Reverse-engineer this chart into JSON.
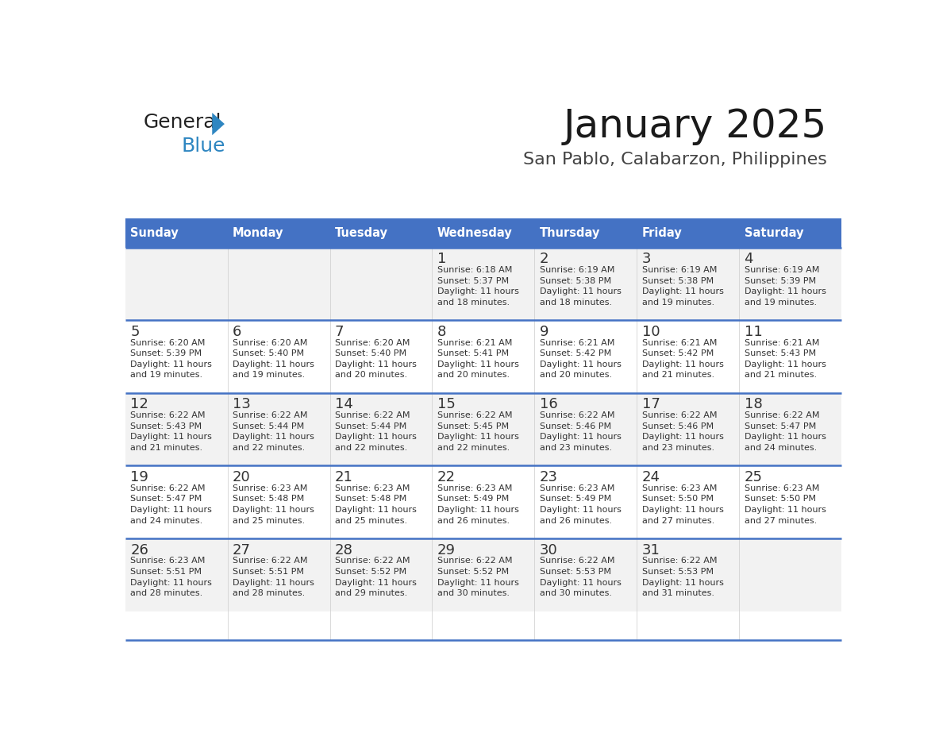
{
  "title": "January 2025",
  "subtitle": "San Pablo, Calabarzon, Philippines",
  "days_of_week": [
    "Sunday",
    "Monday",
    "Tuesday",
    "Wednesday",
    "Thursday",
    "Friday",
    "Saturday"
  ],
  "header_bg": "#4472C4",
  "header_text": "#FFFFFF",
  "row_bg_odd": "#F2F2F2",
  "row_bg_even": "#FFFFFF",
  "cell_text_color": "#333333",
  "day_num_color": "#333333",
  "separator_color": "#4472C4",
  "calendar_data": [
    [
      null,
      null,
      null,
      {
        "day": 1,
        "sunrise": "6:18 AM",
        "sunset": "5:37 PM",
        "daylight_mins": 18
      },
      {
        "day": 2,
        "sunrise": "6:19 AM",
        "sunset": "5:38 PM",
        "daylight_mins": 18
      },
      {
        "day": 3,
        "sunrise": "6:19 AM",
        "sunset": "5:38 PM",
        "daylight_mins": 19
      },
      {
        "day": 4,
        "sunrise": "6:19 AM",
        "sunset": "5:39 PM",
        "daylight_mins": 19
      }
    ],
    [
      {
        "day": 5,
        "sunrise": "6:20 AM",
        "sunset": "5:39 PM",
        "daylight_mins": 19
      },
      {
        "day": 6,
        "sunrise": "6:20 AM",
        "sunset": "5:40 PM",
        "daylight_mins": 19
      },
      {
        "day": 7,
        "sunrise": "6:20 AM",
        "sunset": "5:40 PM",
        "daylight_mins": 20
      },
      {
        "day": 8,
        "sunrise": "6:21 AM",
        "sunset": "5:41 PM",
        "daylight_mins": 20
      },
      {
        "day": 9,
        "sunrise": "6:21 AM",
        "sunset": "5:42 PM",
        "daylight_mins": 20
      },
      {
        "day": 10,
        "sunrise": "6:21 AM",
        "sunset": "5:42 PM",
        "daylight_mins": 21
      },
      {
        "day": 11,
        "sunrise": "6:21 AM",
        "sunset": "5:43 PM",
        "daylight_mins": 21
      }
    ],
    [
      {
        "day": 12,
        "sunrise": "6:22 AM",
        "sunset": "5:43 PM",
        "daylight_mins": 21
      },
      {
        "day": 13,
        "sunrise": "6:22 AM",
        "sunset": "5:44 PM",
        "daylight_mins": 22
      },
      {
        "day": 14,
        "sunrise": "6:22 AM",
        "sunset": "5:44 PM",
        "daylight_mins": 22
      },
      {
        "day": 15,
        "sunrise": "6:22 AM",
        "sunset": "5:45 PM",
        "daylight_mins": 22
      },
      {
        "day": 16,
        "sunrise": "6:22 AM",
        "sunset": "5:46 PM",
        "daylight_mins": 23
      },
      {
        "day": 17,
        "sunrise": "6:22 AM",
        "sunset": "5:46 PM",
        "daylight_mins": 23
      },
      {
        "day": 18,
        "sunrise": "6:22 AM",
        "sunset": "5:47 PM",
        "daylight_mins": 24
      }
    ],
    [
      {
        "day": 19,
        "sunrise": "6:22 AM",
        "sunset": "5:47 PM",
        "daylight_mins": 24
      },
      {
        "day": 20,
        "sunrise": "6:23 AM",
        "sunset": "5:48 PM",
        "daylight_mins": 25
      },
      {
        "day": 21,
        "sunrise": "6:23 AM",
        "sunset": "5:48 PM",
        "daylight_mins": 25
      },
      {
        "day": 22,
        "sunrise": "6:23 AM",
        "sunset": "5:49 PM",
        "daylight_mins": 26
      },
      {
        "day": 23,
        "sunrise": "6:23 AM",
        "sunset": "5:49 PM",
        "daylight_mins": 26
      },
      {
        "day": 24,
        "sunrise": "6:23 AM",
        "sunset": "5:50 PM",
        "daylight_mins": 27
      },
      {
        "day": 25,
        "sunrise": "6:23 AM",
        "sunset": "5:50 PM",
        "daylight_mins": 27
      }
    ],
    [
      {
        "day": 26,
        "sunrise": "6:23 AM",
        "sunset": "5:51 PM",
        "daylight_mins": 28
      },
      {
        "day": 27,
        "sunrise": "6:22 AM",
        "sunset": "5:51 PM",
        "daylight_mins": 28
      },
      {
        "day": 28,
        "sunrise": "6:22 AM",
        "sunset": "5:52 PM",
        "daylight_mins": 29
      },
      {
        "day": 29,
        "sunrise": "6:22 AM",
        "sunset": "5:52 PM",
        "daylight_mins": 30
      },
      {
        "day": 30,
        "sunrise": "6:22 AM",
        "sunset": "5:53 PM",
        "daylight_mins": 30
      },
      {
        "day": 31,
        "sunrise": "6:22 AM",
        "sunset": "5:53 PM",
        "daylight_mins": 31
      },
      null
    ]
  ],
  "logo_text_general": "General",
  "logo_text_blue": "Blue",
  "logo_color_general": "#222222",
  "logo_color_blue": "#2E86C1",
  "logo_triangle_color": "#2E86C1"
}
